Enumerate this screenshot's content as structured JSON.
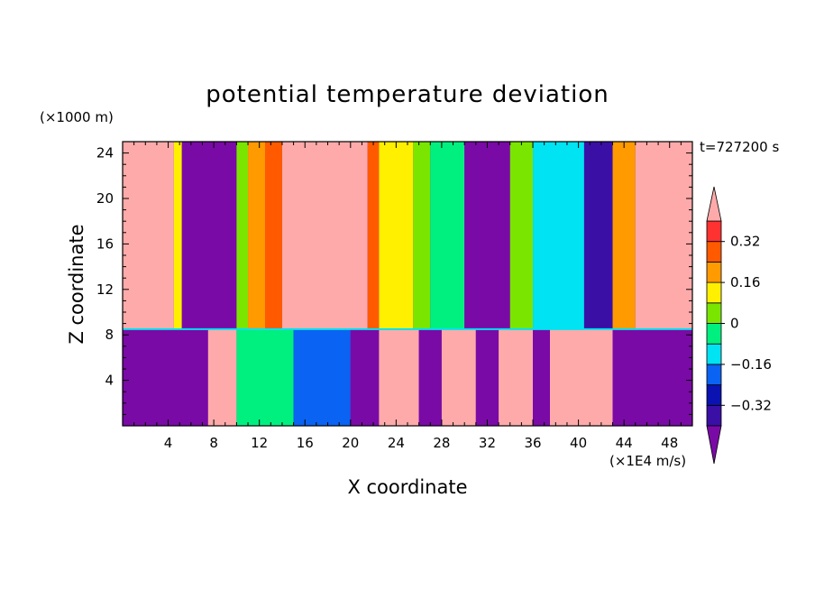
{
  "chart_data": {
    "type": "heatmap",
    "title": "potential temperature deviation",
    "xlabel": "X coordinate",
    "ylabel": "Z coordinate",
    "x_unit": "(×1E4 m/s)",
    "y_unit": "(×1000 m)",
    "time_label": "t=727200 s",
    "xlim": [
      0,
      50
    ],
    "ylim": [
      0,
      25
    ],
    "x_ticks": [
      4,
      8,
      12,
      16,
      20,
      24,
      28,
      32,
      36,
      40,
      44,
      48
    ],
    "y_ticks": [
      4,
      8,
      12,
      16,
      20,
      24
    ],
    "colorbar": {
      "levels": [
        -0.4,
        -0.32,
        -0.24,
        -0.16,
        -0.08,
        0,
        0.08,
        0.16,
        0.24,
        0.32,
        0.4
      ],
      "tick_labels": [
        "0.32",
        "0.16",
        "0",
        "−0.16",
        "−0.32"
      ],
      "tick_values": [
        0.32,
        0.16,
        0,
        -0.16,
        -0.32
      ],
      "colors": [
        "#7a0aa6",
        "#3a0fa6",
        "#0a12b2",
        "#0a63f2",
        "#00e3f2",
        "#00f080",
        "#7ae600",
        "#fff000",
        "#ff9a00",
        "#ff5a00",
        "#ff3232",
        "#ffaaaa"
      ]
    },
    "upper_layer_bands": [
      {
        "x0": 0,
        "x1": 4.5,
        "value": 0.45
      },
      {
        "x0": 4.5,
        "x1": 5.2,
        "value": 0.1
      },
      {
        "x0": 5.2,
        "x1": 10,
        "value": -0.45
      },
      {
        "x0": 10,
        "x1": 11,
        "value": 0.05
      },
      {
        "x0": 11,
        "x1": 12.5,
        "value": 0.2
      },
      {
        "x0": 12.5,
        "x1": 14,
        "value": 0.3
      },
      {
        "x0": 14,
        "x1": 21.5,
        "value": 0.45
      },
      {
        "x0": 21.5,
        "x1": 22.5,
        "value": 0.25
      },
      {
        "x0": 22.5,
        "x1": 25.5,
        "value": 0.14
      },
      {
        "x0": 25.5,
        "x1": 27,
        "value": 0.05
      },
      {
        "x0": 27,
        "x1": 30,
        "value": -0.05
      },
      {
        "x0": 30,
        "x1": 34,
        "value": -0.45
      },
      {
        "x0": 34,
        "x1": 36,
        "value": 0.05
      },
      {
        "x0": 36,
        "x1": 40.5,
        "value": -0.12
      },
      {
        "x0": 40.5,
        "x1": 43,
        "value": -0.38
      },
      {
        "x0": 43,
        "x1": 45,
        "value": 0.2
      },
      {
        "x0": 45,
        "x1": 50,
        "value": 0.45
      }
    ],
    "lower_layer_bands": [
      {
        "x0": 0,
        "x1": 7.5,
        "value": -0.45
      },
      {
        "x0": 7.5,
        "x1": 10,
        "value": 0.45
      },
      {
        "x0": 10,
        "x1": 15,
        "value": 0.0
      },
      {
        "x0": 15,
        "x1": 20,
        "value": -0.2
      },
      {
        "x0": 20,
        "x1": 22.5,
        "value": -0.45
      },
      {
        "x0": 22.5,
        "x1": 26,
        "value": 0.45
      },
      {
        "x0": 26,
        "x1": 28,
        "value": -0.45
      },
      {
        "x0": 28,
        "x1": 31,
        "value": 0.45
      },
      {
        "x0": 31,
        "x1": 33,
        "value": -0.45
      },
      {
        "x0": 33,
        "x1": 36,
        "value": 0.45
      },
      {
        "x0": 36,
        "x1": 37.5,
        "value": -0.45
      },
      {
        "x0": 37.5,
        "x1": 43,
        "value": 0.45
      },
      {
        "x0": 43,
        "x1": 50,
        "value": -0.45
      }
    ],
    "interface_height": 8.5
  }
}
